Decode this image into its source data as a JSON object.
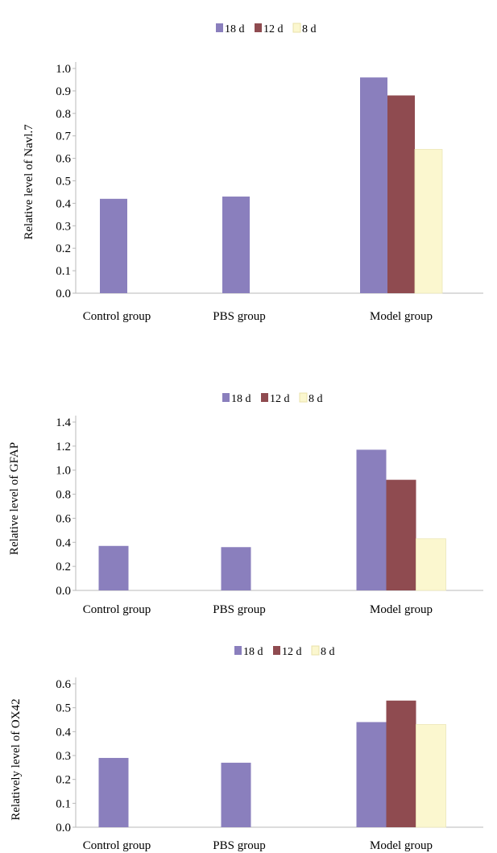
{
  "colors": {
    "18 d": "#8a7fbd",
    "12 d": "#8f4b50",
    "8 d": "#fbf7cf",
    "axis": "#b8b8b8"
  },
  "chart_data": [
    {
      "type": "bar",
      "categories": [
        "Control group",
        "PBS group",
        "Model group"
      ],
      "series": [
        {
          "name": "18 d",
          "values": [
            0.42,
            0.43,
            0.96
          ]
        },
        {
          "name": "12 d",
          "values": [
            null,
            null,
            0.88
          ]
        },
        {
          "name": "8 d",
          "values": [
            null,
            null,
            0.64
          ]
        }
      ],
      "ylabel": "Relative level of Navl.7",
      "ylim": [
        0,
        1.0
      ],
      "yticks": [
        "0.0",
        "0.1",
        "0.2",
        "0.3",
        "0.4",
        "0.5",
        "0.6",
        "0.7",
        "0.8",
        "0.9",
        "1.0"
      ],
      "legend": "top-center",
      "grid": false
    },
    {
      "type": "bar",
      "categories": [
        "Control group",
        "PBS group",
        "Model group"
      ],
      "series": [
        {
          "name": "18 d",
          "values": [
            0.37,
            0.36,
            1.17
          ]
        },
        {
          "name": "12 d",
          "values": [
            null,
            null,
            0.92
          ]
        },
        {
          "name": "8 d",
          "values": [
            null,
            null,
            0.43
          ]
        }
      ],
      "ylabel": "Relative level of GFAP",
      "ylim": [
        0,
        1.4
      ],
      "yticks": [
        "0.0",
        "0.2",
        "0.4",
        "0.6",
        "0.8",
        "1.0",
        "1.2",
        "1.4"
      ],
      "legend": "top-center",
      "grid": false
    },
    {
      "type": "bar",
      "categories": [
        "Control group",
        "PBS group",
        "Model group"
      ],
      "series": [
        {
          "name": "18 d",
          "values": [
            0.29,
            0.27,
            0.44
          ]
        },
        {
          "name": "12 d",
          "values": [
            null,
            null,
            0.53
          ]
        },
        {
          "name": "8 d",
          "values": [
            null,
            null,
            0.43
          ]
        }
      ],
      "ylabel": "Relatively level of OX42",
      "ylim": [
        0,
        0.6
      ],
      "yticks": [
        "0.0",
        "0.1",
        "0.2",
        "0.3",
        "0.4",
        "0.5",
        "0.6"
      ],
      "legend": "top-center",
      "grid": false
    }
  ]
}
